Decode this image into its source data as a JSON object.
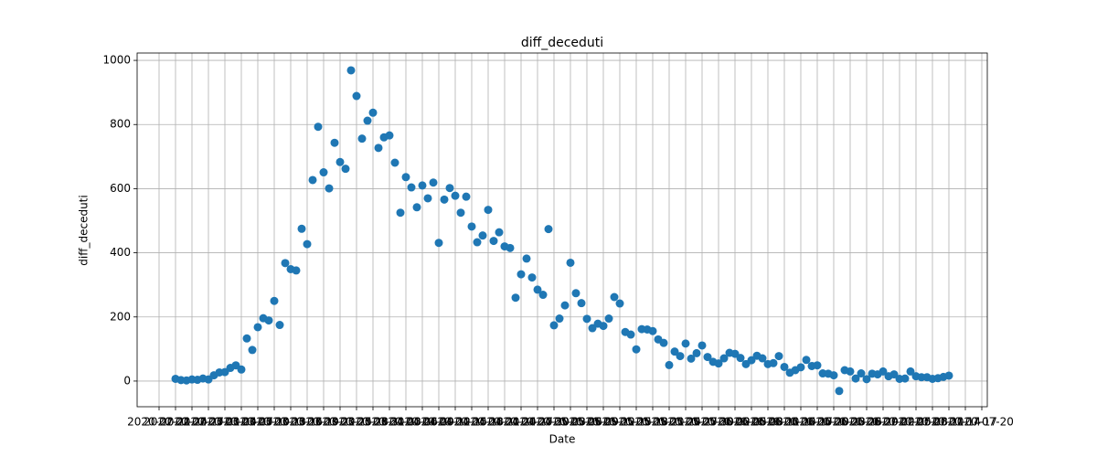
{
  "chart_data": {
    "type": "scatter",
    "title": "diff_deceduti",
    "x_label": "Date",
    "y_label": "diff_deceduti",
    "x": [
      "2020-02-24",
      "2020-02-25",
      "2020-02-26",
      "2020-02-27",
      "2020-02-28",
      "2020-02-29",
      "2020-03-01",
      "2020-03-02",
      "2020-03-03",
      "2020-03-04",
      "2020-03-05",
      "2020-03-06",
      "2020-03-07",
      "2020-03-08",
      "2020-03-09",
      "2020-03-10",
      "2020-03-11",
      "2020-03-12",
      "2020-03-13",
      "2020-03-14",
      "2020-03-15",
      "2020-03-16",
      "2020-03-17",
      "2020-03-18",
      "2020-03-19",
      "2020-03-20",
      "2020-03-21",
      "2020-03-22",
      "2020-03-23",
      "2020-03-24",
      "2020-03-25",
      "2020-03-26",
      "2020-03-27",
      "2020-03-28",
      "2020-03-29",
      "2020-03-30",
      "2020-03-31",
      "2020-04-01",
      "2020-04-02",
      "2020-04-03",
      "2020-04-04",
      "2020-04-05",
      "2020-04-06",
      "2020-04-07",
      "2020-04-08",
      "2020-04-09",
      "2020-04-10",
      "2020-04-11",
      "2020-04-12",
      "2020-04-13",
      "2020-04-14",
      "2020-04-15",
      "2020-04-16",
      "2020-04-17",
      "2020-04-18",
      "2020-04-19",
      "2020-04-20",
      "2020-04-21",
      "2020-04-22",
      "2020-04-23",
      "2020-04-24",
      "2020-04-25",
      "2020-04-26",
      "2020-04-27",
      "2020-04-28",
      "2020-04-29",
      "2020-04-30",
      "2020-05-01",
      "2020-05-02",
      "2020-05-03",
      "2020-05-04",
      "2020-05-05",
      "2020-05-06",
      "2020-05-07",
      "2020-05-08",
      "2020-05-09",
      "2020-05-10",
      "2020-05-11",
      "2020-05-12",
      "2020-05-13",
      "2020-05-14",
      "2020-05-15",
      "2020-05-16",
      "2020-05-17",
      "2020-05-18",
      "2020-05-19",
      "2020-05-20",
      "2020-05-21",
      "2020-05-22",
      "2020-05-23",
      "2020-05-24",
      "2020-05-25",
      "2020-05-26",
      "2020-05-27",
      "2020-05-28",
      "2020-05-29",
      "2020-05-30",
      "2020-05-31",
      "2020-06-01",
      "2020-06-02",
      "2020-06-03",
      "2020-06-04",
      "2020-06-05",
      "2020-06-06",
      "2020-06-07",
      "2020-06-08",
      "2020-06-09",
      "2020-06-10",
      "2020-06-11",
      "2020-06-12",
      "2020-06-13",
      "2020-06-14",
      "2020-06-15",
      "2020-06-16",
      "2020-06-17",
      "2020-06-18",
      "2020-06-19",
      "2020-06-20",
      "2020-06-21",
      "2020-06-22",
      "2020-06-23",
      "2020-06-24",
      "2020-06-25",
      "2020-06-26",
      "2020-06-27",
      "2020-06-28",
      "2020-06-29",
      "2020-06-30",
      "2020-07-01",
      "2020-07-02",
      "2020-07-03",
      "2020-07-04",
      "2020-07-05",
      "2020-07-06",
      "2020-07-07",
      "2020-07-08",
      "2020-07-09",
      "2020-07-10",
      "2020-07-11",
      "2020-07-12",
      "2020-07-13",
      "2020-07-14"
    ],
    "values": [
      7,
      3,
      2,
      5,
      4,
      8,
      5,
      18,
      27,
      28,
      41,
      49,
      36,
      133,
      97,
      168,
      196,
      189,
      250,
      175,
      368,
      349,
      345,
      475,
      427,
      627,
      793,
      651,
      601,
      743,
      683,
      662,
      969,
      889,
      756,
      812,
      837,
      727,
      760,
      766,
      681,
      525,
      636,
      604,
      542,
      610,
      570,
      619,
      431,
      566,
      602,
      578,
      525,
      575,
      482,
      433,
      454,
      534,
      437,
      464,
      420,
      415,
      260,
      333,
      382,
      323,
      285,
      269,
      474,
      174,
      195,
      236,
      369,
      274,
      243,
      194,
      165,
      179,
      172,
      195,
      262,
      242,
      153,
      145,
      99,
      162,
      161,
      156,
      130,
      119,
      50,
      92,
      78,
      117,
      70,
      87,
      111,
      75,
      60,
      55,
      71,
      88,
      85,
      72,
      53,
      65,
      79,
      71,
      53,
      56,
      78,
      44,
      26,
      34,
      43,
      66,
      47,
      49,
      24,
      23,
      18,
      -31,
      34,
      30,
      8,
      24,
      6,
      23,
      21,
      30,
      15,
      21,
      7,
      8,
      30,
      15,
      12,
      12,
      7,
      9,
      13,
      17
    ],
    "color": "#1f77b4",
    "xlim": [
      "2020-02-17",
      "2020-07-21"
    ],
    "xticks": [
      "2020-02-21",
      "2020-02-24",
      "2020-02-27",
      "2020-03-01",
      "2020-03-04",
      "2020-03-07",
      "2020-03-10",
      "2020-03-13",
      "2020-03-16",
      "2020-03-19",
      "2020-03-22",
      "2020-03-25",
      "2020-03-28",
      "2020-03-31",
      "2020-04-03",
      "2020-04-06",
      "2020-04-09",
      "2020-04-12",
      "2020-04-15",
      "2020-04-18",
      "2020-04-21",
      "2020-04-24",
      "2020-04-27",
      "2020-04-30",
      "2020-05-03",
      "2020-05-06",
      "2020-05-09",
      "2020-05-12",
      "2020-05-15",
      "2020-05-18",
      "2020-05-21",
      "2020-05-24",
      "2020-05-27",
      "2020-05-30",
      "2020-06-02",
      "2020-06-05",
      "2020-06-08",
      "2020-06-11",
      "2020-06-14",
      "2020-06-17",
      "2020-06-20",
      "2020-06-23",
      "2020-06-26",
      "2020-06-29",
      "2020-07-02",
      "2020-07-05",
      "2020-07-08",
      "2020-07-11",
      "2020-07-14",
      "2020-07-17",
      "2020-07-20"
    ],
    "ylim": [
      -80,
      1023
    ],
    "yticks": [
      0,
      200,
      400,
      600,
      800,
      1000
    ],
    "grid": true
  }
}
